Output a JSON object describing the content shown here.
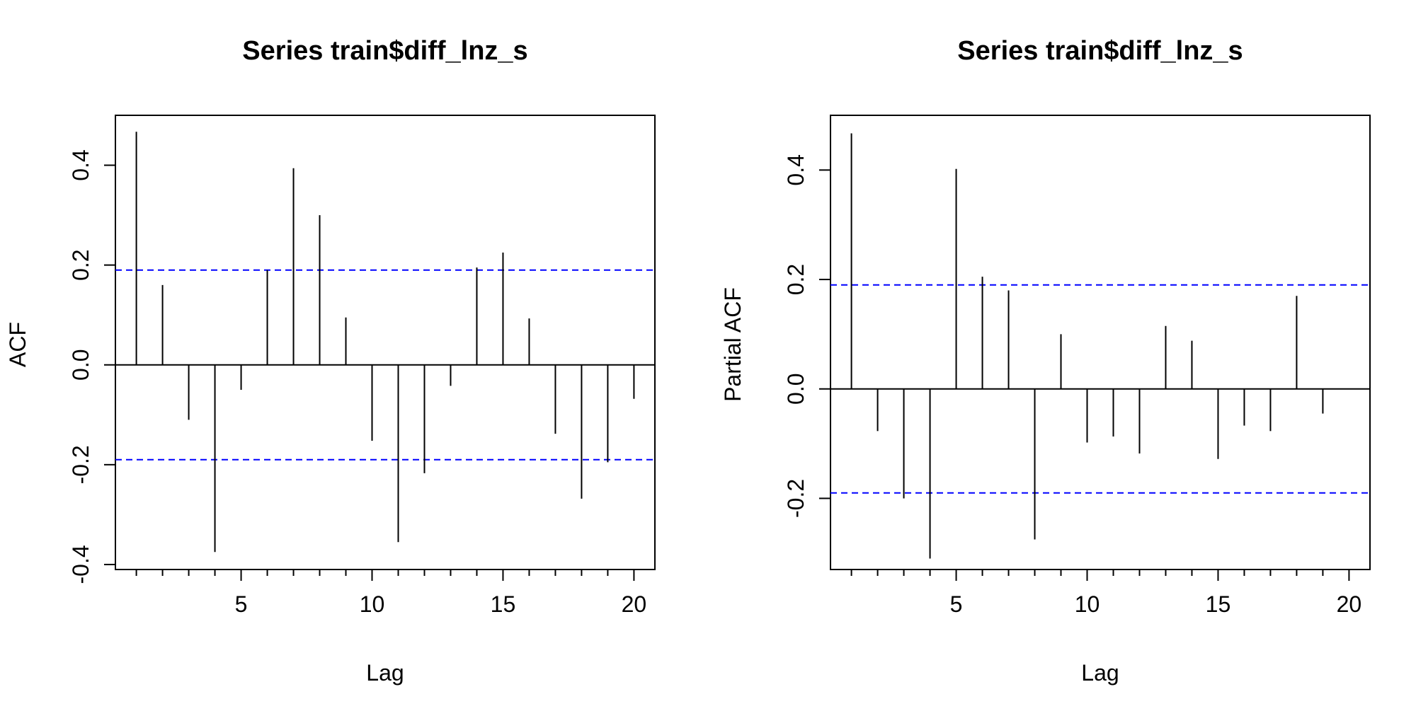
{
  "chart_data": [
    {
      "type": "bar",
      "title": "Series  train$diff_lnz_s",
      "xlabel": "Lag",
      "ylabel": "ACF",
      "xlim": [
        0.2,
        20.8
      ],
      "ylim": [
        -0.41,
        0.5
      ],
      "x_ticks": [
        5,
        10,
        15,
        20
      ],
      "y_ticks": [
        -0.4,
        -0.2,
        0.0,
        0.2,
        0.4
      ],
      "confidence_bound": 0.19,
      "bound_color": "#0000ff",
      "x": [
        1,
        2,
        3,
        4,
        5,
        6,
        7,
        8,
        9,
        10,
        11,
        12,
        13,
        14,
        15,
        16,
        17,
        18,
        19,
        20
      ],
      "values": [
        0.467,
        0.16,
        -0.11,
        -0.375,
        -0.05,
        0.19,
        0.394,
        0.3,
        0.095,
        -0.152,
        -0.355,
        -0.217,
        -0.042,
        0.195,
        0.225,
        0.093,
        -0.138,
        -0.268,
        -0.195,
        -0.068
      ],
      "grid": false
    },
    {
      "type": "bar",
      "title": "Series  train$diff_lnz_s",
      "xlabel": "Lag",
      "ylabel": "Partial ACF",
      "xlim": [
        0.2,
        20.8
      ],
      "ylim": [
        -0.33,
        0.5
      ],
      "x_ticks": [
        5,
        10,
        15,
        20
      ],
      "y_ticks": [
        -0.2,
        0.0,
        0.2,
        0.4
      ],
      "confidence_bound": 0.19,
      "bound_color": "#0000ff",
      "x": [
        1,
        2,
        3,
        4,
        5,
        6,
        7,
        8,
        9,
        10,
        11,
        12,
        13,
        14,
        15,
        16,
        17,
        18,
        19
      ],
      "values": [
        0.467,
        -0.077,
        -0.2,
        -0.31,
        0.402,
        0.205,
        0.18,
        -0.275,
        0.1,
        -0.098,
        -0.087,
        -0.118,
        0.115,
        0.088,
        -0.128,
        -0.067,
        -0.077,
        0.17,
        -0.045
      ],
      "grid": false
    }
  ]
}
